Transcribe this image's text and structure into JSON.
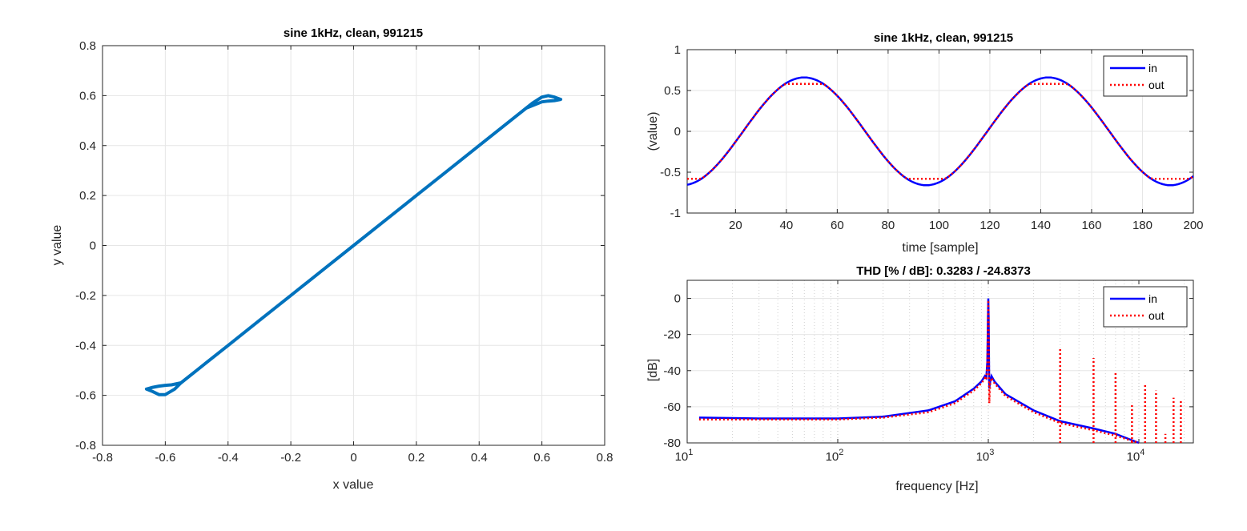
{
  "colors": {
    "xy": "#0072BD",
    "in": "#0000FF",
    "out": "#FF0000"
  },
  "chart_data": [
    {
      "type": "line",
      "title": "sine 1kHz, clean, 991215",
      "xlabel": "x value",
      "ylabel": "y value",
      "xlim": [
        -0.8,
        0.8
      ],
      "ylim": [
        -0.8,
        0.8
      ],
      "xticks": [
        "-0.8",
        "-0.6",
        "-0.4",
        "-0.2",
        "0",
        "0.2",
        "0.4",
        "0.6",
        "0.8"
      ],
      "yticks": [
        "0.8",
        "0.6",
        "0.4",
        "0.2",
        "0",
        "-0.2",
        "-0.4",
        "-0.6",
        "-0.8"
      ],
      "grid": true,
      "series": [
        {
          "x": [
            -0.66,
            -0.64,
            -0.62,
            -0.6,
            -0.57,
            -0.55,
            -0.5,
            -0.4,
            -0.3,
            -0.2,
            -0.1,
            0,
            0.1,
            0.2,
            0.3,
            0.4,
            0.5,
            0.55,
            0.57,
            0.6,
            0.62,
            0.64,
            0.66,
            0.64,
            0.62,
            0.6,
            0.58,
            0.55,
            0.5,
            0.4,
            0.3,
            0.2,
            0.1,
            0,
            -0.1,
            -0.2,
            -0.3,
            -0.4,
            -0.5,
            -0.55,
            -0.58,
            -0.6,
            -0.62,
            -0.64,
            -0.66
          ],
          "y": [
            -0.575,
            -0.585,
            -0.597,
            -0.597,
            -0.575,
            -0.55,
            -0.5,
            -0.4,
            -0.3,
            -0.2,
            -0.1,
            0,
            0.1,
            0.2,
            0.3,
            0.4,
            0.5,
            0.55,
            0.57,
            0.594,
            0.6,
            0.594,
            0.585,
            0.58,
            0.578,
            0.575,
            0.565,
            0.55,
            0.5,
            0.4,
            0.3,
            0.2,
            0.1,
            0,
            -0.1,
            -0.2,
            -0.3,
            -0.4,
            -0.5,
            -0.55,
            -0.558,
            -0.56,
            -0.563,
            -0.568,
            -0.575
          ]
        }
      ]
    },
    {
      "type": "line",
      "title": "sine 1kHz, clean, 991215",
      "xlabel": "time [sample]",
      "ylabel": "(value)",
      "xlim": [
        1,
        200
      ],
      "ylim": [
        -1,
        1
      ],
      "xticks": [
        "20",
        "40",
        "60",
        "80",
        "100",
        "120",
        "140",
        "160",
        "180",
        "200"
      ],
      "yticks": [
        "1",
        "0.5",
        "0",
        "-0.5",
        "-1"
      ],
      "grid": true,
      "legend": {
        "position": "top-right",
        "entries": [
          "in",
          "out"
        ]
      },
      "series": [
        {
          "name": "in",
          "amplitude": 0.66,
          "period": 96,
          "peak_sample": 47,
          "n": 200
        },
        {
          "name": "out",
          "amplitude": 0.66,
          "period": 96,
          "peak_sample": 47,
          "clip_level": 0.58,
          "n": 200
        }
      ]
    },
    {
      "type": "line",
      "title": "THD [% / dB]:  0.3283 / -24.8373",
      "xlabel": "frequency [Hz]",
      "ylabel": "[dB]",
      "xscale": "log",
      "xlim": [
        10,
        23000
      ],
      "ylim": [
        -80,
        10
      ],
      "xticks": [
        {
          "base": "10",
          "exp": "1"
        },
        {
          "base": "10",
          "exp": "2"
        },
        {
          "base": "10",
          "exp": "3"
        },
        {
          "base": "10",
          "exp": "4"
        }
      ],
      "yticks": [
        "0",
        "-20",
        "-40",
        "-60",
        "-80"
      ],
      "grid": true,
      "legend": {
        "position": "top-right",
        "entries": [
          "in",
          "out"
        ]
      },
      "series": [
        {
          "name": "in",
          "x": [
            12,
            30,
            100,
            200,
            400,
            600,
            800,
            900,
            950,
            970,
            985,
            995,
            1000,
            1005,
            1015,
            1030,
            1050,
            1100,
            1300,
            2000,
            3000,
            5000,
            7000,
            10000
          ],
          "y": [
            -66,
            -66.5,
            -66.5,
            -65.5,
            -62,
            -57,
            -50,
            -46,
            -43,
            -44,
            -35,
            -10,
            0,
            -10,
            -50,
            -46,
            -43,
            -46,
            -53,
            -62,
            -68,
            -72,
            -75,
            -80
          ]
        },
        {
          "name": "out",
          "x": [
            12,
            30,
            100,
            200,
            400,
            600,
            800,
            900,
            950,
            970,
            985,
            995,
            1000,
            1005,
            1015,
            1030,
            1050,
            1100,
            1300,
            2000,
            3000,
            5000,
            7000,
            10000
          ],
          "y": [
            -67,
            -67,
            -67,
            -66,
            -63,
            -58,
            -51,
            -47,
            -44,
            -45,
            -36,
            -11,
            -1,
            -11,
            -58,
            -47,
            -44,
            -47,
            -54,
            -63,
            -69,
            -73,
            -76,
            -80
          ],
          "harmonic_f": [
            3000,
            5000,
            7000,
            9000,
            11000,
            13000,
            15000,
            17000,
            19000
          ],
          "harmonic_db": [
            -27,
            -33,
            -41,
            -59,
            -47,
            -51,
            -75,
            -55,
            -56
          ]
        }
      ]
    }
  ]
}
